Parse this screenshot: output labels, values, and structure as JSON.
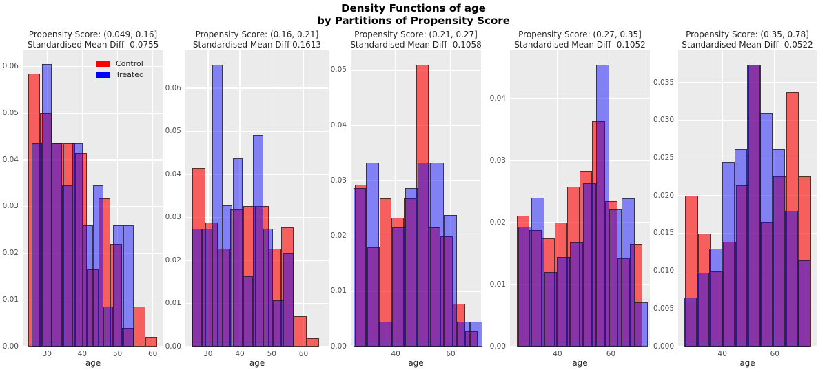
{
  "figure": {
    "suptitle_line1": "Density Functions of age",
    "suptitle_line2": "by Partitions of Propensity Score"
  },
  "legend": {
    "items": [
      {
        "label": "Control",
        "color": "#ff0000"
      },
      {
        "label": "Treated",
        "color": "#0000ff"
      }
    ]
  },
  "style": {
    "plot_bg": "#ebebeb",
    "grid_color": "#ffffff",
    "control_fill": "rgba(255,0,0,0.60)",
    "treated_fill": "rgba(0,0,255,0.45)",
    "bar_edge": "rgba(30,30,30,0.75)"
  },
  "chart_data": [
    {
      "type": "bar",
      "subtype": "overlaid-density-histogram",
      "title_line1": "Propensity Score: (0.049, 0.16]",
      "title_line2": "Standardised Mean Diff -0.0755",
      "xlabel": "age",
      "xlim": [
        23.1,
        63.0
      ],
      "xticks": [
        30,
        40,
        50,
        60
      ],
      "ylim": [
        0,
        0.0635
      ],
      "ytick_labels": [
        "0.00",
        "0.01",
        "0.02",
        "0.03",
        "0.04",
        "0.05",
        "0.06"
      ],
      "grid": true,
      "legend_position": "upper right",
      "series": [
        {
          "name": "Control",
          "bin_start": 24.6,
          "bin_width": 3.33,
          "values": [
            0.0585,
            0.05,
            0.0435,
            0.0435,
            0.0415,
            0.0165,
            0.0318,
            0.022,
            0.004,
            0.0085,
            0.002
          ]
        },
        {
          "name": "Treated",
          "bin_start": 25.6,
          "bin_width": 2.9,
          "values": [
            0.0435,
            0.0605,
            0.0435,
            0.0345,
            0.0435,
            0.026,
            0.0345,
            0.0085,
            0.026,
            0.026
          ]
        }
      ]
    },
    {
      "type": "bar",
      "subtype": "overlaid-density-histogram",
      "title_line1": "Propensity Score: (0.16, 0.21]",
      "title_line2": "Standardised Mean Diff 0.1613",
      "xlabel": "age",
      "xlim": [
        22.9,
        67.9
      ],
      "xticks": [
        30,
        40,
        50,
        60
      ],
      "ylim": [
        0,
        0.0688
      ],
      "ytick_labels": [
        "0.00",
        "0.01",
        "0.02",
        "0.03",
        "0.04",
        "0.05",
        "0.06"
      ],
      "grid": true,
      "series": [
        {
          "name": "Control",
          "bin_start": 25.1,
          "bin_width": 3.98,
          "values": [
            0.0415,
            0.0288,
            0.0228,
            0.0318,
            0.0326,
            0.0327,
            0.0228,
            0.0277,
            0.007,
            0.002
          ]
        },
        {
          "name": "Treated",
          "bin_start": 25.0,
          "bin_width": 3.18,
          "values": [
            0.0273,
            0.0273,
            0.0655,
            0.0328,
            0.0437,
            0.0164,
            0.0492,
            0.0273,
            0.0108,
            0.0218
          ]
        }
      ]
    },
    {
      "type": "bar",
      "subtype": "overlaid-density-histogram",
      "title_line1": "Propensity Score: (0.21, 0.27]",
      "title_line2": "Standardised Mean Diff -0.1058",
      "xlabel": "age",
      "xlim": [
        23.7,
        71.0
      ],
      "xticks": [
        40,
        60
      ],
      "ylim": [
        0,
        0.0536
      ],
      "ytick_labels": [
        "0.00",
        "0.01",
        "0.02",
        "0.03",
        "0.04",
        "0.05"
      ],
      "grid": true,
      "series": [
        {
          "name": "Control",
          "bin_start": 25.2,
          "bin_width": 4.45,
          "values": [
            0.0293,
            0.018,
            0.0268,
            0.0233,
            0.0268,
            0.051,
            0.0216,
            0.0199,
            0.0077,
            0.0027
          ]
        },
        {
          "name": "Treated",
          "bin_start": 24.6,
          "bin_width": 4.7,
          "values": [
            0.0287,
            0.0333,
            0.0045,
            0.0216,
            0.0287,
            0.0333,
            0.0333,
            0.0238,
            0.0045,
            0.0045
          ]
        }
      ]
    },
    {
      "type": "bar",
      "subtype": "overlaid-density-histogram",
      "title_line1": "Propensity Score: (0.27, 0.35]",
      "title_line2": "Standardised Mean Diff -0.1052",
      "xlabel": "age",
      "xlim": [
        22.2,
        74.6
      ],
      "xticks": [
        40,
        60
      ],
      "ylim": [
        0,
        0.0478
      ],
      "ytick_labels": [
        "0.00",
        "0.01",
        "0.02",
        "0.03",
        "0.04"
      ],
      "grid": true,
      "series": [
        {
          "name": "Control",
          "bin_start": 24.8,
          "bin_width": 4.7,
          "values": [
            0.0211,
            0.0188,
            0.0175,
            0.02,
            0.0258,
            0.0283,
            0.0364,
            0.0235,
            0.0142,
            0.0166
          ]
        },
        {
          "name": "Treated",
          "bin_start": 25.3,
          "bin_width": 4.85,
          "values": [
            0.0193,
            0.024,
            0.012,
            0.0144,
            0.0168,
            0.0263,
            0.0455,
            0.0221,
            0.0239,
            0.0071
          ]
        }
      ]
    },
    {
      "type": "bar",
      "subtype": "overlaid-density-histogram",
      "title_line1": "Propensity Score: (0.35, 0.78]",
      "title_line2": "Standardised Mean Diff -0.0522",
      "xlabel": "age",
      "xlim": [
        23.1,
        76.0
      ],
      "xticks": [
        40,
        60
      ],
      "ylim": [
        0,
        0.0393
      ],
      "ytick_labels": [
        "0.000",
        "0.005",
        "0.010",
        "0.015",
        "0.020",
        "0.025",
        "0.030",
        "0.035"
      ],
      "grid": true,
      "series": [
        {
          "name": "Control",
          "bin_start": 25.8,
          "bin_width": 4.82,
          "values": [
            0.02,
            0.015,
            0.01,
            0.0139,
            0.0214,
            0.0374,
            0.0165,
            0.0226,
            0.0337,
            0.0226
          ]
        },
        {
          "name": "Treated",
          "bin_start": 25.4,
          "bin_width": 4.82,
          "values": [
            0.0065,
            0.0098,
            0.013,
            0.0245,
            0.0261,
            0.0374,
            0.031,
            0.0261,
            0.018,
            0.0114
          ]
        }
      ]
    }
  ]
}
